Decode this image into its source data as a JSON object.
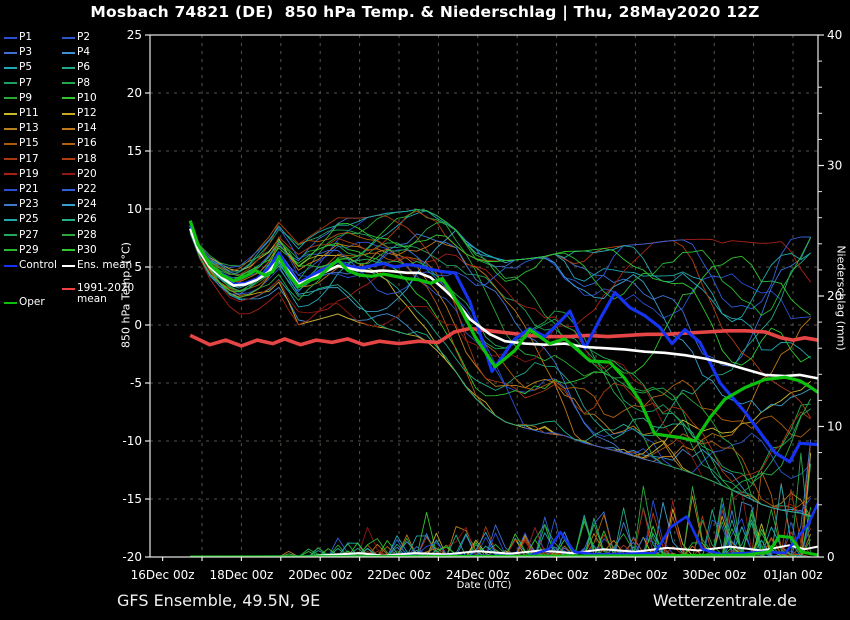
{
  "title": "Mosbach 74821 (DE)  850 hPa Temp. & Niederschlag | Thu, 28May2020 12Z",
  "footer": {
    "left": "GFS Ensemble, 49.5N, 9E",
    "right": "Wetterzentrale.de"
  },
  "legend": {
    "members": [
      {
        "label": "P1",
        "color": "#2b4fd0"
      },
      {
        "label": "P2",
        "color": "#2b55c8"
      },
      {
        "label": "P3",
        "color": "#3f6fd0"
      },
      {
        "label": "P4",
        "color": "#3f8fd0"
      },
      {
        "label": "P5",
        "color": "#20a8b8"
      },
      {
        "label": "P6",
        "color": "#20a888"
      },
      {
        "label": "P7",
        "color": "#1f9f60"
      },
      {
        "label": "P8",
        "color": "#21a84b"
      },
      {
        "label": "P9",
        "color": "#2aa836"
      },
      {
        "label": "P10",
        "color": "#2fc42f"
      },
      {
        "label": "P11",
        "color": "#c8b82a"
      },
      {
        "label": "P12",
        "color": "#c8a820"
      },
      {
        "label": "P13",
        "color": "#b88020"
      },
      {
        "label": "P14",
        "color": "#c07818"
      },
      {
        "label": "P15",
        "color": "#b05a10"
      },
      {
        "label": "P16",
        "color": "#b06010"
      },
      {
        "label": "P17",
        "color": "#a83810"
      },
      {
        "label": "P18",
        "color": "#b03c10"
      },
      {
        "label": "P19",
        "color": "#a82018"
      },
      {
        "label": "P20",
        "color": "#901810"
      },
      {
        "label": "P21",
        "color": "#2b4fd0"
      },
      {
        "label": "P22",
        "color": "#3060d8"
      },
      {
        "label": "P23",
        "color": "#4078d0"
      },
      {
        "label": "P24",
        "color": "#38a0cc"
      },
      {
        "label": "P25",
        "color": "#20a8a8"
      },
      {
        "label": "P26",
        "color": "#22b088"
      },
      {
        "label": "P27",
        "color": "#22a858"
      },
      {
        "label": "P28",
        "color": "#2aa83e"
      },
      {
        "label": "P29",
        "color": "#28b830"
      },
      {
        "label": "P30",
        "color": "#30c830"
      }
    ],
    "control_label": "Control",
    "ens_mean_label": "Ens. mean",
    "clim_label_line1": "1991-2020",
    "clim_label_line2": "mean",
    "oper_label": "Oper"
  },
  "chart_data": {
    "type": "line",
    "title": "Mosbach 74821 (DE)  850 hPa Temp. & Niederschlag | Thu, 28May2020 12Z",
    "xlabel": "Date (UTC)",
    "ylabel_left": "850 hPa Temp. (°C)",
    "ylabel_right": "Niederschlag (mm)",
    "temp_range": [
      -20,
      25
    ],
    "precip_range": [
      0,
      40
    ],
    "grid": true,
    "temp_ticks": [
      {
        "v": 25,
        "label": "25"
      },
      {
        "v": 20,
        "label": "20"
      },
      {
        "v": 15,
        "label": "15"
      },
      {
        "v": 10,
        "label": "10"
      },
      {
        "v": 5,
        "label": "5"
      },
      {
        "v": 0,
        "label": "0"
      },
      {
        "v": -5,
        "label": "-5"
      },
      {
        "v": -10,
        "label": "-10"
      },
      {
        "v": -15,
        "label": "-15"
      },
      {
        "v": -20,
        "label": "-20"
      }
    ],
    "precip_ticks": [
      {
        "v": 0,
        "label": "0"
      },
      {
        "v": 10,
        "label": "10"
      },
      {
        "v": 20,
        "label": "20"
      },
      {
        "v": 30,
        "label": "30"
      },
      {
        "v": 40,
        "label": "40"
      }
    ],
    "x_ticks": [
      {
        "t": 0,
        "label": "16Dec 00z"
      },
      {
        "t": 2,
        "label": "18Dec 00z"
      },
      {
        "t": 4,
        "label": "20Dec 00z"
      },
      {
        "t": 6,
        "label": "22Dec 00z"
      },
      {
        "t": 8,
        "label": "24Dec 00z"
      },
      {
        "t": 10,
        "label": "26Dec 00z"
      },
      {
        "t": 12,
        "label": "28Dec 00z"
      },
      {
        "t": 14,
        "label": "30Dec 00z"
      },
      {
        "t": 16,
        "label": "01Jan 00z"
      }
    ],
    "series": [
      {
        "name": "Ens. mean",
        "color": "#ffffff",
        "width": 2.6,
        "points": [
          [
            0.7,
            8.3
          ],
          [
            0.9,
            6.5
          ],
          [
            1.2,
            5.0
          ],
          [
            1.5,
            4.1
          ],
          [
            1.8,
            3.4
          ],
          [
            2.1,
            3.5
          ],
          [
            2.4,
            3.9
          ],
          [
            2.7,
            4.6
          ],
          [
            2.95,
            5.7
          ],
          [
            3.2,
            4.6
          ],
          [
            3.45,
            3.5
          ],
          [
            3.7,
            3.9
          ],
          [
            3.95,
            4.3
          ],
          [
            4.2,
            4.7
          ],
          [
            4.45,
            5.1
          ],
          [
            4.7,
            4.9
          ],
          [
            5.0,
            4.7
          ],
          [
            5.3,
            4.6
          ],
          [
            5.6,
            4.7
          ],
          [
            5.9,
            4.6
          ],
          [
            6.2,
            4.5
          ],
          [
            6.5,
            4.5
          ],
          [
            6.8,
            4.1
          ],
          [
            7.17,
            3.0
          ],
          [
            7.42,
            2.2
          ],
          [
            7.8,
            0.5
          ],
          [
            8.31,
            -0.8
          ],
          [
            8.69,
            -1.4
          ],
          [
            9.2,
            -1.6
          ],
          [
            9.7,
            -1.7
          ],
          [
            10.21,
            -1.6
          ],
          [
            10.72,
            -1.9
          ],
          [
            11.22,
            -2.0
          ],
          [
            11.73,
            -2.1
          ],
          [
            12.24,
            -2.3
          ],
          [
            12.74,
            -2.4
          ],
          [
            13.26,
            -2.6
          ],
          [
            13.77,
            -2.9
          ],
          [
            14.27,
            -3.3
          ],
          [
            14.78,
            -3.8
          ],
          [
            15.29,
            -4.3
          ],
          [
            15.8,
            -4.4
          ],
          [
            16.17,
            -4.3
          ],
          [
            16.63,
            -4.6
          ]
        ]
      },
      {
        "name": "Control",
        "color": "#1533f0",
        "width": 3.2,
        "points": [
          [
            0.7,
            8.6
          ],
          [
            0.9,
            6.7
          ],
          [
            1.2,
            5.1
          ],
          [
            1.5,
            4.2
          ],
          [
            1.8,
            3.5
          ],
          [
            2.1,
            3.6
          ],
          [
            2.4,
            4.0
          ],
          [
            2.7,
            4.9
          ],
          [
            2.95,
            6.2
          ],
          [
            3.2,
            4.8
          ],
          [
            3.45,
            3.6
          ],
          [
            3.7,
            4.1
          ],
          [
            3.95,
            4.6
          ],
          [
            4.2,
            5.0
          ],
          [
            4.45,
            5.5
          ],
          [
            4.7,
            5.1
          ],
          [
            5.0,
            4.9
          ],
          [
            5.3,
            5.1
          ],
          [
            5.6,
            5.3
          ],
          [
            5.9,
            5.0
          ],
          [
            6.2,
            5.2
          ],
          [
            6.5,
            5.1
          ],
          [
            6.8,
            4.8
          ],
          [
            7.1,
            4.6
          ],
          [
            7.42,
            4.5
          ],
          [
            7.8,
            2.0
          ],
          [
            8.36,
            -4.0
          ],
          [
            8.94,
            -1.2
          ],
          [
            9.32,
            -0.3
          ],
          [
            9.7,
            -1.0
          ],
          [
            10.09,
            0.3
          ],
          [
            10.34,
            1.2
          ],
          [
            10.72,
            -2.0
          ],
          [
            11.1,
            0.5
          ],
          [
            11.48,
            2.8
          ],
          [
            11.86,
            1.5
          ],
          [
            12.24,
            0.8
          ],
          [
            12.62,
            -0.2
          ],
          [
            12.93,
            -1.6
          ],
          [
            13.26,
            -0.4
          ],
          [
            13.64,
            -1.5
          ],
          [
            14.15,
            -5.0
          ],
          [
            14.78,
            -7.5
          ],
          [
            15.54,
            -11.0
          ],
          [
            15.92,
            -11.8
          ],
          [
            16.17,
            -10.2
          ],
          [
            16.63,
            -10.3
          ]
        ]
      },
      {
        "name": "Oper",
        "color": "#0ec00e",
        "width": 3.2,
        "points": [
          [
            0.7,
            9.0
          ],
          [
            0.9,
            6.9
          ],
          [
            1.2,
            5.2
          ],
          [
            1.5,
            4.3
          ],
          [
            1.8,
            3.8
          ],
          [
            2.1,
            4.2
          ],
          [
            2.35,
            4.7
          ],
          [
            2.6,
            4.3
          ],
          [
            2.8,
            4.6
          ],
          [
            2.95,
            5.9
          ],
          [
            3.2,
            4.4
          ],
          [
            3.45,
            3.3
          ],
          [
            3.7,
            3.8
          ],
          [
            3.95,
            4.1
          ],
          [
            4.2,
            4.9
          ],
          [
            4.45,
            5.6
          ],
          [
            4.7,
            4.7
          ],
          [
            5.0,
            4.3
          ],
          [
            5.3,
            4.2
          ],
          [
            5.6,
            4.4
          ],
          [
            5.9,
            4.2
          ],
          [
            6.2,
            4.0
          ],
          [
            6.5,
            3.9
          ],
          [
            6.8,
            3.6
          ],
          [
            7.1,
            4.0
          ],
          [
            7.3,
            3.0
          ],
          [
            7.55,
            1.5
          ],
          [
            7.93,
            -1.0
          ],
          [
            8.44,
            -3.6
          ],
          [
            8.94,
            -2.2
          ],
          [
            9.32,
            -0.4
          ],
          [
            9.82,
            -1.6
          ],
          [
            10.21,
            -1.2
          ],
          [
            10.85,
            -3.1
          ],
          [
            11.35,
            -3.2
          ],
          [
            11.73,
            -4.6
          ],
          [
            12.11,
            -6.5
          ],
          [
            12.49,
            -9.4
          ],
          [
            13.13,
            -9.7
          ],
          [
            13.51,
            -10.0
          ],
          [
            13.89,
            -8.0
          ],
          [
            14.27,
            -6.4
          ],
          [
            14.78,
            -5.4
          ],
          [
            15.29,
            -4.7
          ],
          [
            15.8,
            -4.5
          ],
          [
            16.17,
            -4.8
          ],
          [
            16.42,
            -5.3
          ],
          [
            16.63,
            -5.8
          ]
        ]
      },
      {
        "name": "1991-2020 mean",
        "color": "#e64545",
        "width": 3.6,
        "points": [
          [
            0.7,
            -0.9
          ],
          [
            1.2,
            -1.7
          ],
          [
            1.6,
            -1.3
          ],
          [
            2.0,
            -1.8
          ],
          [
            2.4,
            -1.3
          ],
          [
            2.8,
            -1.6
          ],
          [
            3.1,
            -1.2
          ],
          [
            3.5,
            -1.7
          ],
          [
            3.9,
            -1.3
          ],
          [
            4.3,
            -1.5
          ],
          [
            4.7,
            -1.2
          ],
          [
            5.1,
            -1.7
          ],
          [
            5.5,
            -1.4
          ],
          [
            6.0,
            -1.6
          ],
          [
            6.5,
            -1.4
          ],
          [
            7.0,
            -1.5
          ],
          [
            7.4,
            -0.6
          ],
          [
            7.8,
            -0.3
          ],
          [
            8.3,
            -0.5
          ],
          [
            8.8,
            -0.7
          ],
          [
            9.3,
            -0.9
          ],
          [
            9.8,
            -1.0
          ],
          [
            10.3,
            -1.0
          ],
          [
            10.8,
            -0.9
          ],
          [
            11.3,
            -1.0
          ],
          [
            11.8,
            -0.9
          ],
          [
            12.3,
            -0.8
          ],
          [
            12.8,
            -0.8
          ],
          [
            13.3,
            -0.7
          ],
          [
            13.8,
            -0.6
          ],
          [
            14.3,
            -0.5
          ],
          [
            14.8,
            -0.5
          ],
          [
            15.3,
            -0.6
          ],
          [
            15.7,
            -1.1
          ],
          [
            16.0,
            -1.3
          ],
          [
            16.3,
            -1.1
          ],
          [
            16.63,
            -1.3
          ]
        ]
      }
    ],
    "precip_series": [
      {
        "name": "Ens. mean precip",
        "color": "#ffffff",
        "width": 2.0,
        "points": [
          [
            0.7,
            0
          ],
          [
            3.5,
            0
          ],
          [
            4.2,
            0.15
          ],
          [
            5.0,
            0.3
          ],
          [
            5.6,
            0.1
          ],
          [
            6.4,
            0.3
          ],
          [
            7.2,
            0.2
          ],
          [
            8.0,
            0.45
          ],
          [
            8.8,
            0.25
          ],
          [
            9.6,
            0.5
          ],
          [
            10.4,
            0.3
          ],
          [
            11.2,
            0.6
          ],
          [
            12.0,
            0.4
          ],
          [
            12.8,
            0.7
          ],
          [
            13.6,
            0.5
          ],
          [
            14.4,
            0.8
          ],
          [
            15.2,
            0.5
          ],
          [
            15.9,
            0.9
          ],
          [
            16.3,
            0.6
          ],
          [
            16.63,
            0.8
          ]
        ]
      },
      {
        "name": "Control precip",
        "color": "#1533f0",
        "width": 2.6,
        "points": [
          [
            0.7,
            0
          ],
          [
            9.3,
            0.1
          ],
          [
            9.8,
            0.6
          ],
          [
            10.1,
            1.9
          ],
          [
            10.45,
            0.4
          ],
          [
            11.0,
            0.2
          ],
          [
            12.5,
            0.3
          ],
          [
            12.9,
            2.3
          ],
          [
            13.3,
            3.1
          ],
          [
            13.7,
            0.6
          ],
          [
            14.2,
            0.2
          ],
          [
            15.3,
            0.4
          ],
          [
            15.8,
            0.3
          ],
          [
            16.1,
            1.4
          ],
          [
            16.4,
            2.6
          ],
          [
            16.63,
            4.1
          ]
        ]
      },
      {
        "name": "Oper precip",
        "color": "#0ec00e",
        "width": 3.0,
        "points": [
          [
            0.7,
            0
          ],
          [
            9.0,
            0.05
          ],
          [
            12.0,
            0.1
          ],
          [
            14.8,
            0.15
          ],
          [
            15.4,
            0.4
          ],
          [
            15.65,
            1.6
          ],
          [
            15.95,
            1.5
          ],
          [
            16.2,
            0.4
          ],
          [
            16.63,
            0.15
          ]
        ]
      }
    ],
    "ensemble": {
      "note": "30 perturbed members drawn as thin spaghetti lines around the ensemble mean",
      "seed": 12345,
      "t_start": 0.7,
      "t_end": 16.63,
      "t_step": 0.25,
      "spread_base": 0.55,
      "spread_growth": 0.3,
      "precip_onset_t": 3.0,
      "precip_max_early": 0.5,
      "precip_growth": 0.42
    }
  },
  "axes": {
    "temp_label": "850 hPa Temp. (°C)",
    "precip_label": "Niederschlag (mm)",
    "x_label": "Date (UTC)"
  }
}
